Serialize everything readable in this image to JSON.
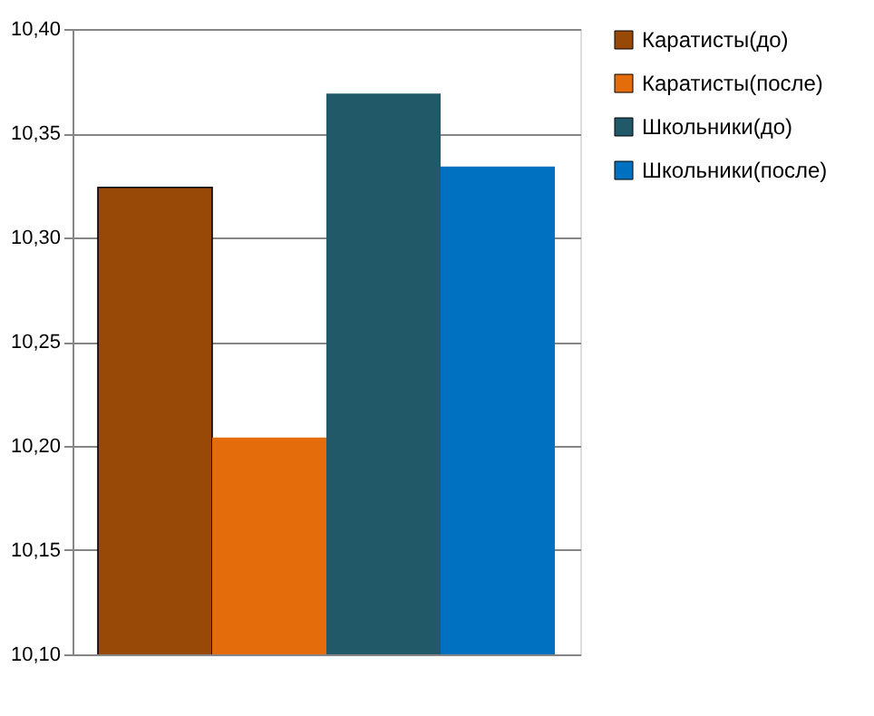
{
  "chart_data": {
    "type": "bar",
    "categories": [
      null
    ],
    "series": [
      {
        "name": "Каратисты(до)",
        "color": "#984807",
        "values": [
          10.324
        ]
      },
      {
        "name": "Каратисты(после)",
        "color": "#e46c0a",
        "values": [
          10.204
        ]
      },
      {
        "name": "Школьники(до)",
        "color": "#215968",
        "values": [
          10.369
        ]
      },
      {
        "name": "Школьники(после)",
        "color": "#0070c0",
        "values": [
          10.334
        ]
      }
    ],
    "ylim": [
      10.1,
      10.4
    ],
    "yticks": [
      {
        "value": 10.1,
        "label": "10,10"
      },
      {
        "value": 10.15,
        "label": "10,15"
      },
      {
        "value": 10.2,
        "label": "10,20"
      },
      {
        "value": 10.25,
        "label": "10,25"
      },
      {
        "value": 10.3,
        "label": "10,30"
      },
      {
        "value": 10.35,
        "label": "10,35"
      },
      {
        "value": 10.4,
        "label": "10,40"
      }
    ],
    "grid": "y",
    "legend": "right",
    "tick_labels": "y"
  }
}
